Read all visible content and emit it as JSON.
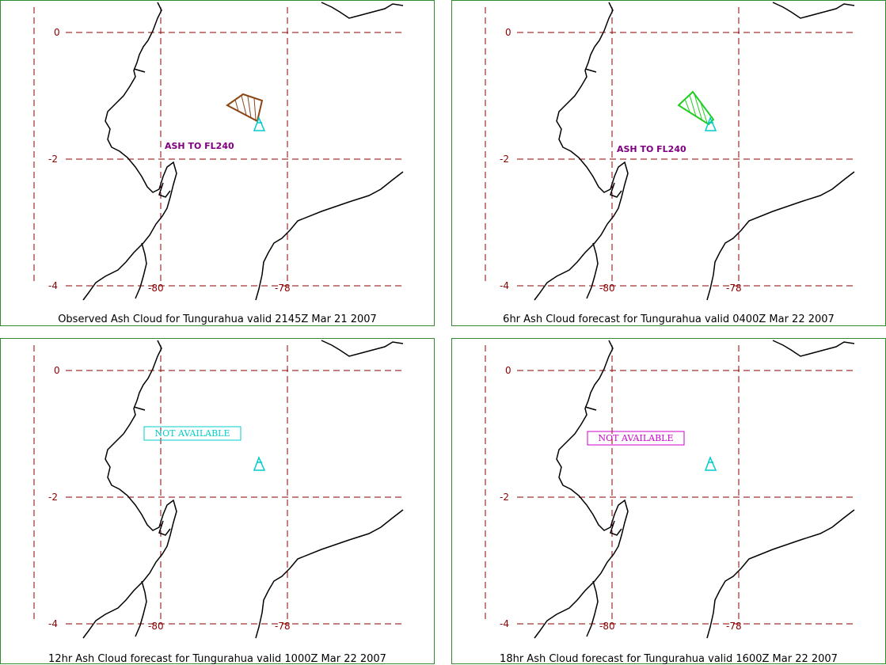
{
  "panels": [
    {
      "caption": "Observed Ash Cloud for Tungurahua valid 2145Z Mar 21 2007",
      "ash_label": "ASH TO FL240",
      "ash_color": "#8b4513",
      "status": "",
      "status_color": ""
    },
    {
      "caption": "6hr Ash Cloud forecast for Tungurahua valid 0400Z Mar 22 2007",
      "ash_label": "ASH TO FL240",
      "ash_color": "#22cc22",
      "status": "",
      "status_color": ""
    },
    {
      "caption": "12hr Ash Cloud forecast for Tungurahua valid 1000Z Mar 22 2007",
      "ash_label": "",
      "ash_color": "",
      "status": "NOT AVAILABLE",
      "status_color": "#00cccc"
    },
    {
      "caption": "18hr Ash Cloud forecast for Tungurahua valid 1600Z Mar 22 2007",
      "ash_label": "",
      "ash_color": "",
      "status": "NOT AVAILABLE",
      "status_color": "#cc00cc"
    }
  ],
  "grid": {
    "lat_labels": [
      "0",
      "-2",
      "-4"
    ],
    "lon_labels": [
      "-80",
      "-78"
    ]
  },
  "colors": {
    "grid": "#8b0000",
    "border": "#2e8b2e",
    "coast": "#000000",
    "volcano": "#00cccc"
  },
  "icons": {
    "volcano": "volcano-icon"
  }
}
